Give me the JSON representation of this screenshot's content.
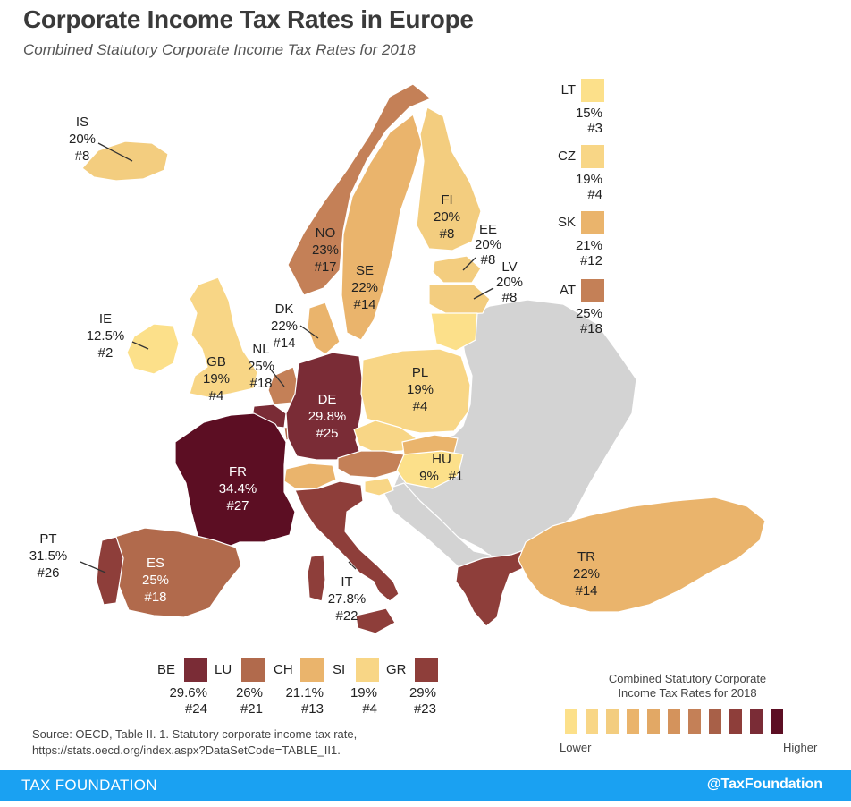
{
  "title": "Corporate Income Tax Rates in Europe",
  "subtitle": "Combined Statutory Corporate Income Tax Rates for 2018",
  "colors": {
    "no_data": "#d3d3d3",
    "scale": [
      "#fce08a",
      "#f8d686",
      "#f3cd7f",
      "#eab46c",
      "#e2a865",
      "#d4935c",
      "#c48057",
      "#a86048",
      "#8e3e3a",
      "#7a2c36",
      "#5c0e23"
    ]
  },
  "countries": {
    "IS": {
      "code": "IS",
      "rate": "20%",
      "rank": "#8"
    },
    "IE": {
      "code": "IE",
      "rate": "12.5%",
      "rank": "#2"
    },
    "GB": {
      "code": "GB",
      "rate": "19%",
      "rank": "#4"
    },
    "PT": {
      "code": "PT",
      "rate": "31.5%",
      "rank": "#26"
    },
    "ES": {
      "code": "ES",
      "rate": "25%",
      "rank": "#18"
    },
    "FR": {
      "code": "FR",
      "rate": "34.4%",
      "rank": "#27"
    },
    "NL": {
      "code": "NL",
      "rate": "25%",
      "rank": "#18"
    },
    "DK": {
      "code": "DK",
      "rate": "22%",
      "rank": "#14"
    },
    "NO": {
      "code": "NO",
      "rate": "23%",
      "rank": "#17"
    },
    "SE": {
      "code": "SE",
      "rate": "22%",
      "rank": "#14"
    },
    "FI": {
      "code": "FI",
      "rate": "20%",
      "rank": "#8"
    },
    "EE": {
      "code": "EE",
      "rate": "20%",
      "rank": "#8"
    },
    "LV": {
      "code": "LV",
      "rate": "20%",
      "rank": "#8"
    },
    "DE": {
      "code": "DE",
      "rate": "29.8%",
      "rank": "#25"
    },
    "PL": {
      "code": "PL",
      "rate": "19%",
      "rank": "#4"
    },
    "HU": {
      "code": "HU",
      "rate": "9%",
      "rank": "#1"
    },
    "IT": {
      "code": "IT",
      "rate": "27.8%",
      "rank": "#22"
    },
    "TR": {
      "code": "TR",
      "rate": "22%",
      "rank": "#14"
    }
  },
  "inset_right": [
    {
      "code": "LT",
      "rate": "15%",
      "rank": "#3",
      "color": "#fce08a"
    },
    {
      "code": "CZ",
      "rate": "19%",
      "rank": "#4",
      "color": "#f8d686"
    },
    {
      "code": "SK",
      "rate": "21%",
      "rank": "#12",
      "color": "#eab46c"
    },
    {
      "code": "AT",
      "rate": "25%",
      "rank": "#18",
      "color": "#c48057"
    }
  ],
  "inset_bottom": [
    {
      "code": "BE",
      "rate": "29.6%",
      "rank": "#24",
      "color": "#7a2c36"
    },
    {
      "code": "LU",
      "rate": "26%",
      "rank": "#21",
      "color": "#b16a4c"
    },
    {
      "code": "CH",
      "rate": "21.1%",
      "rank": "#13",
      "color": "#eab46c"
    },
    {
      "code": "SI",
      "rate": "19%",
      "rank": "#4",
      "color": "#f8d686"
    },
    {
      "code": "GR",
      "rate": "29%",
      "rank": "#23",
      "color": "#8e3e3a"
    }
  ],
  "legend": {
    "title_line1": "Combined Statutory Corporate",
    "title_line2": "Income Tax Rates for 2018",
    "low": "Lower",
    "high": "Higher"
  },
  "source": {
    "line1": "Source:  OECD, Table II. 1. Statutory corporate income tax rate,",
    "line2": "https://stats.oecd.org/index.aspx?DataSetCode=TABLE_II1."
  },
  "footer": {
    "org": "TAX FOUNDATION",
    "handle": "@TaxFoundation"
  }
}
